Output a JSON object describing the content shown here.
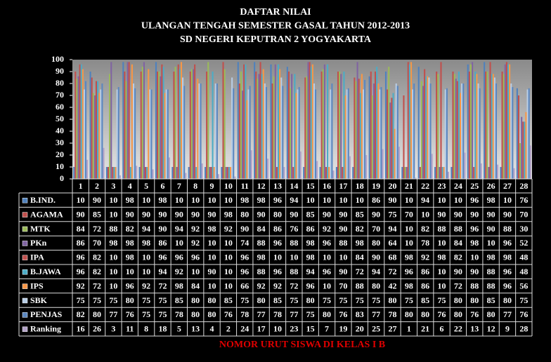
{
  "chart_data": {
    "type": "bar",
    "title_lines": [
      "DAFTAR NILAI",
      "ULANGAN TENGAH SEMESTER GASAL TAHUN 2012-2013",
      "SD NEGERI KEPUTRAN 2 YOGYAKARTA"
    ],
    "x_label": "NOMOR URUT SISWA DI KELAS I B",
    "categories": [
      "1",
      "2",
      "3",
      "4",
      "5",
      "6",
      "7",
      "8",
      "9",
      "10",
      "11",
      "12",
      "13",
      "14",
      "15",
      "16",
      "17",
      "18",
      "19",
      "20",
      "21",
      "22",
      "23",
      "24",
      "25",
      "26",
      "27",
      "28"
    ],
    "ylim": [
      0,
      100
    ],
    "yticks": [
      0,
      10,
      20,
      30,
      40,
      50,
      60,
      70,
      80,
      90,
      100
    ],
    "grid": false,
    "series": [
      {
        "name": "B.IND.",
        "color": "#4f81bd",
        "values": [
          10,
          90,
          10,
          98,
          10,
          98,
          10,
          10,
          10,
          10,
          98,
          98,
          96,
          94,
          10,
          10,
          10,
          10,
          86,
          90,
          10,
          94,
          10,
          10,
          96,
          98,
          10,
          76
        ]
      },
      {
        "name": "AGAMA",
        "color": "#c0504d",
        "values": [
          90,
          85,
          10,
          90,
          90,
          90,
          90,
          90,
          90,
          98,
          80,
          90,
          80,
          90,
          85,
          90,
          90,
          85,
          90,
          75,
          70,
          10,
          90,
          90,
          90,
          90,
          90,
          70
        ]
      },
      {
        "name": "MTK",
        "color": "#9bbb59",
        "values": [
          84,
          72,
          88,
          82,
          94,
          90,
          94,
          92,
          98,
          92,
          90,
          84,
          86,
          76,
          86,
          92,
          90,
          82,
          70,
          94,
          10,
          82,
          88,
          88,
          96,
          90,
          88,
          30
        ]
      },
      {
        "name": "PKn",
        "color": "#8064a2",
        "values": [
          86,
          70,
          98,
          98,
          98,
          86,
          10,
          92,
          10,
          10,
          74,
          88,
          96,
          88,
          98,
          96,
          88,
          98,
          80,
          64,
          10,
          78,
          10,
          84,
          98,
          10,
          96,
          52
        ]
      },
      {
        "name": "IPA",
        "color": "#c0504d",
        "values": [
          96,
          82,
          10,
          98,
          10,
          96,
          96,
          96,
          10,
          10,
          96,
          98,
          10,
          10,
          98,
          10,
          10,
          84,
          90,
          68,
          98,
          92,
          98,
          82,
          10,
          98,
          98,
          48
        ]
      },
      {
        "name": "B.JAWA",
        "color": "#4bacc6",
        "values": [
          96,
          82,
          10,
          10,
          10,
          94,
          92,
          10,
          90,
          10,
          96,
          88,
          96,
          88,
          94,
          96,
          90,
          72,
          94,
          72,
          96,
          86,
          10,
          90,
          90,
          88,
          96,
          48
        ]
      },
      {
        "name": "IPS",
        "color": "#f79646",
        "values": [
          92,
          72,
          10,
          96,
          92,
          72,
          98,
          84,
          10,
          10,
          66,
          92,
          92,
          72,
          96,
          10,
          70,
          88,
          80,
          42,
          98,
          86,
          10,
          72,
          88,
          88,
          96,
          56
        ]
      },
      {
        "name": "SBK",
        "color": "#b7cde6",
        "values": [
          75,
          75,
          75,
          80,
          75,
          75,
          85,
          80,
          80,
          85,
          75,
          80,
          85,
          75,
          80,
          75,
          75,
          75,
          75,
          80,
          75,
          85,
          75,
          80,
          80,
          85,
          80,
          75
        ]
      },
      {
        "name": "PENJAS",
        "color": "#5b87c0",
        "values": [
          82,
          80,
          77,
          76,
          75,
          75,
          78,
          80,
          80,
          76,
          78,
          77,
          78,
          77,
          75,
          80,
          76,
          83,
          77,
          78,
          80,
          80,
          76,
          80,
          76,
          80,
          77,
          76
        ]
      },
      {
        "name": "Ranking",
        "color": "#b3a2c7",
        "values": [
          16,
          26,
          3,
          11,
          8,
          18,
          5,
          13,
          4,
          2,
          24,
          17,
          10,
          23,
          15,
          7,
          19,
          20,
          25,
          27,
          1,
          21,
          6,
          22,
          13,
          12,
          9,
          28
        ]
      }
    ]
  }
}
